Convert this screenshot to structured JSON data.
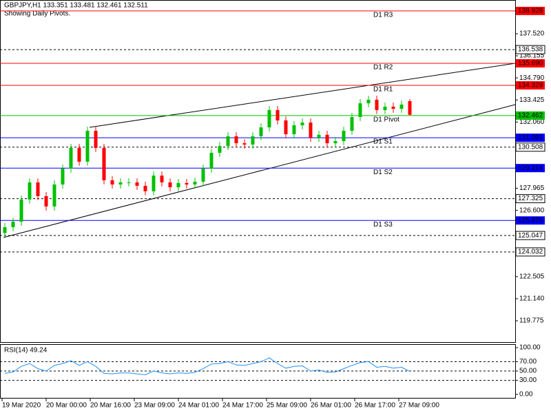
{
  "chart_data": {
    "type": "candlestick",
    "title": "GBPJPY,H1  133.351 133.481 132.461 132.511",
    "subtitle": "Showing Daily Pivots.",
    "up_color": "#00c000",
    "down_color": "#ff0000",
    "open": [
      125.2,
      125.56,
      125.9,
      127.27,
      128.33,
      127.48,
      126.84,
      128.2,
      129.18,
      130.46,
      129.61,
      131.52,
      130.46,
      128.46,
      128.2,
      128.33,
      128.33,
      128.12,
      127.78,
      128.75,
      128.33,
      128.03,
      128.29,
      128.2,
      128.37,
      129.18,
      130.16,
      130.58,
      131.18,
      130.75,
      130.67,
      131.18,
      131.73,
      132.8,
      132.16,
      131.31,
      131.86,
      132.03,
      131.09,
      131.27,
      130.75,
      130.88,
      131.52,
      132.37,
      133.22,
      133.44,
      132.8,
      133.01,
      132.88,
      133.351
    ],
    "high": [
      125.81,
      126.15,
      127.52,
      128.58,
      128.58,
      127.73,
      128.45,
      129.43,
      130.71,
      130.71,
      131.77,
      131.77,
      130.71,
      128.71,
      128.58,
      128.58,
      128.58,
      128.37,
      129.0,
      129.0,
      128.58,
      128.54,
      128.54,
      128.62,
      129.43,
      130.41,
      130.83,
      131.43,
      131.43,
      131.0,
      131.43,
      131.98,
      133.05,
      133.05,
      132.41,
      132.11,
      132.28,
      132.28,
      131.52,
      131.52,
      131.13,
      131.77,
      132.62,
      133.47,
      133.69,
      133.69,
      133.26,
      133.26,
      133.39,
      133.481
    ],
    "low": [
      124.95,
      125.31,
      125.65,
      127.02,
      127.23,
      126.59,
      126.59,
      127.95,
      128.93,
      129.36,
      129.36,
      130.21,
      128.21,
      127.95,
      127.95,
      128.08,
      127.87,
      127.53,
      127.53,
      128.08,
      127.78,
      127.78,
      127.95,
      127.95,
      128.12,
      128.93,
      129.91,
      130.33,
      130.5,
      130.42,
      130.42,
      130.93,
      131.48,
      131.91,
      131.06,
      131.06,
      131.61,
      130.84,
      130.84,
      130.5,
      130.5,
      130.63,
      131.27,
      132.12,
      132.97,
      132.55,
      132.55,
      132.63,
      132.63,
      132.461
    ],
    "close": [
      125.56,
      125.9,
      127.27,
      128.33,
      127.48,
      126.84,
      128.2,
      129.18,
      130.46,
      129.61,
      131.52,
      130.46,
      128.46,
      128.2,
      128.33,
      128.33,
      128.12,
      127.78,
      128.75,
      128.33,
      128.03,
      128.29,
      128.2,
      128.37,
      129.18,
      130.16,
      130.58,
      131.18,
      130.75,
      130.67,
      131.18,
      131.73,
      132.8,
      132.16,
      131.31,
      131.86,
      132.03,
      131.09,
      131.27,
      130.75,
      130.88,
      131.52,
      132.37,
      133.22,
      133.44,
      132.8,
      133.01,
      132.88,
      133.14,
      132.511
    ],
    "ylim": [
      118.456,
      139.605
    ],
    "yticks": [
      {
        "value": 137.52,
        "label": "137.520"
      },
      136.155,
      {
        "value": 134.79,
        "label": "134.790"
      },
      133.425,
      {
        "value": 132.06,
        "label": "132.060"
      },
      127.965,
      {
        "value": 126.6,
        "label": "126.600"
      },
      122.505,
      {
        "value": 121.14,
        "label": "121.140"
      },
      119.775
    ],
    "pivots": [
      {
        "name": "D1 R3",
        "value": 138.928,
        "color": "#ff0000"
      },
      {
        "name": "D1 R2",
        "value": 135.69,
        "value_label": "135.690",
        "color": "#ff0000"
      },
      {
        "name": "D1 R1",
        "value": 134.329,
        "color": "#ff0000"
      },
      {
        "name": "D1 Pivot",
        "value": 132.462,
        "color": "#00c000"
      },
      {
        "name": "D1 S1",
        "value": 131.091,
        "color": "#0000ff"
      },
      {
        "name": "D1 S2",
        "value": 129.214,
        "color": "#0000ff"
      },
      {
        "name": "D1 S3",
        "value": 125.976,
        "color": "#0000ff"
      }
    ],
    "dashed_levels": [
      136.538,
      130.508,
      127.325,
      125.047,
      124.032
    ],
    "x_labels": [
      "19 Mar 2020",
      "20 Mar 00:00",
      "20 Mar 16:00",
      "23 Mar 09:00",
      "24 Mar 01:00",
      "24 Mar 17:00",
      "25 Mar 09:00",
      "26 Mar 01:00",
      "26 Mar 17:00",
      "27 Mar 09:00"
    ],
    "rsi": {
      "label": "RSI(14) 49.24",
      "color": "#1e90ff",
      "values": [
        45,
        48,
        60,
        66,
        55,
        50,
        62,
        66,
        72,
        62,
        70,
        60,
        45,
        44,
        46,
        46,
        44,
        42,
        50,
        46,
        44,
        46,
        45,
        47,
        55,
        65,
        66,
        70,
        63,
        62,
        66,
        70,
        78,
        66,
        56,
        60,
        61,
        50,
        52,
        47,
        48,
        55,
        62,
        68,
        70,
        58,
        60,
        56,
        58,
        49.24
      ],
      "ylim": [
        -7.4,
        107.4
      ],
      "yticks": [
        {
          "value": 100,
          "label": "100.00"
        },
        {
          "value": 70,
          "label": "70.00"
        },
        {
          "value": 50,
          "label": "50.00"
        },
        {
          "value": 30,
          "label": "30.00"
        },
        {
          "value": 0,
          "label": "0.00"
        }
      ],
      "levels": [
        70,
        50,
        30
      ]
    }
  }
}
